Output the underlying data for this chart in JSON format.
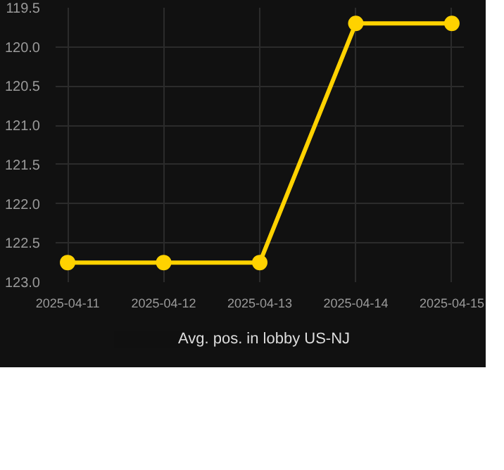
{
  "chart_data": {
    "type": "line",
    "x": [
      "2025-04-11",
      "2025-04-12",
      "2025-04-13",
      "2025-04-14",
      "2025-04-15"
    ],
    "series": [
      {
        "name": "Avg. pos. in lobby US-NJ",
        "color": "#ffd200",
        "values": [
          122.75,
          122.75,
          122.75,
          119.7,
          119.7
        ]
      }
    ],
    "xlim": [
      "2025-04-10T21:00",
      "2025-04-15T03:00"
    ],
    "xticks": [
      "2025-04-11",
      "2025-04-12",
      "2025-04-13",
      "2025-04-14",
      "2025-04-15"
    ],
    "ylim": [
      123.0,
      119.5
    ],
    "yticks": [
      {
        "value": 119.5,
        "label": "119.5"
      },
      {
        "value": 120.0,
        "label": "120.0"
      },
      {
        "value": 120.5,
        "label": "120.5"
      },
      {
        "value": 121.0,
        "label": "121.0"
      },
      {
        "value": 121.5,
        "label": "121.5"
      },
      {
        "value": 122.0,
        "label": "122.0"
      },
      {
        "value": 122.5,
        "label": "122.5"
      },
      {
        "value": 123.0,
        "label": "123.0"
      }
    ],
    "grid": true,
    "legend": "bottom",
    "marker": "circle",
    "line_style": "solid"
  }
}
